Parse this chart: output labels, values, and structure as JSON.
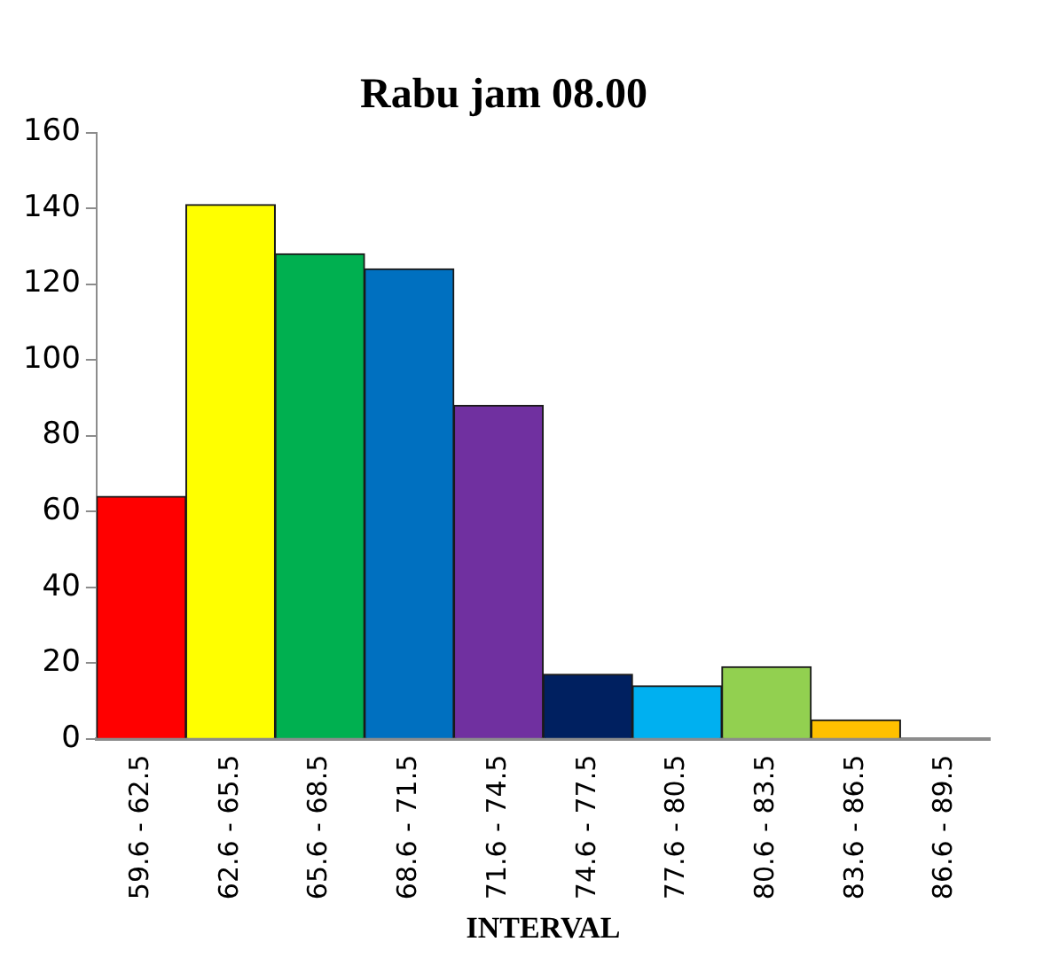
{
  "chart_data": {
    "type": "bar",
    "title": "Rabu jam 08.00",
    "xlabel": "INTERVAL",
    "categories": [
      "59.6 - 62.5",
      "62.6 - 65.5",
      "65.6 - 68.5",
      "68.6 - 71.5",
      "71.6 - 74.5",
      "74.6 - 77.5",
      "77.6 - 80.5",
      "80.6 - 83.5",
      "83.6 - 86.5",
      "86.6 - 89.5"
    ],
    "values": [
      64,
      141,
      128,
      124,
      88,
      17,
      14,
      19,
      5,
      0
    ],
    "colors": [
      "#ff0000",
      "#ffff00",
      "#00b050",
      "#0070c0",
      "#7030a0",
      "#002060",
      "#00b0f0",
      "#92d050",
      "#ffc000",
      "#808080"
    ],
    "ylim": [
      0,
      160
    ],
    "yticks": [
      0,
      20,
      40,
      60,
      80,
      100,
      120,
      140,
      160
    ],
    "grid": false,
    "legend": false
  }
}
